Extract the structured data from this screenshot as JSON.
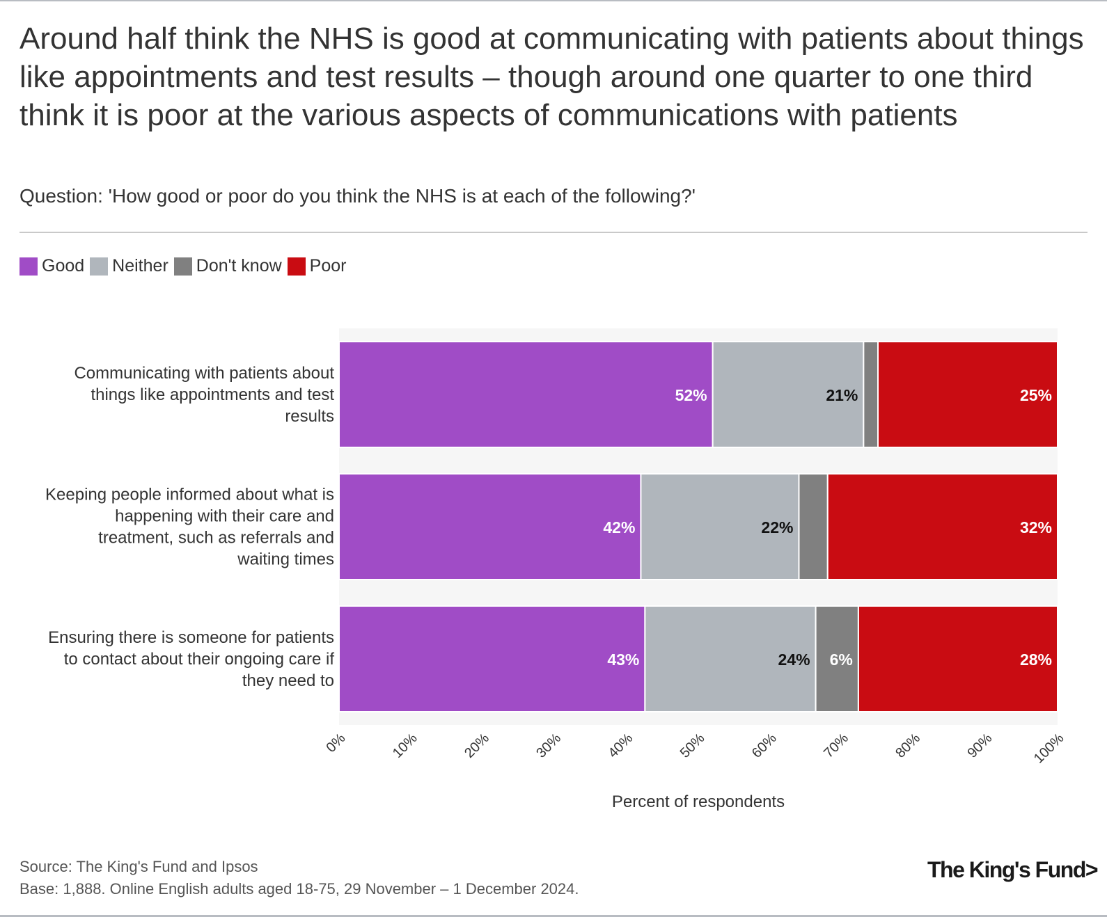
{
  "header": {
    "title": "Around half think the NHS is good at communicating with patients about things like appointments and test results – though around one quarter to one third think it is poor at the various aspects of communications with patients",
    "subtitle": "Question: 'How good or poor do you think the NHS is at each of the following?'"
  },
  "legend": [
    {
      "label": "Good",
      "color": "#a04cc6"
    },
    {
      "label": "Neither",
      "color": "#b0b6bc"
    },
    {
      "label": "Don't know",
      "color": "#808080"
    },
    {
      "label": "Poor",
      "color": "#c90c12"
    }
  ],
  "chart_data": {
    "type": "bar",
    "orientation": "horizontal",
    "stacked": true,
    "categories": [
      [
        "Communicating with patients about",
        "things like appointments and test",
        "results"
      ],
      [
        "Keeping people informed about what is",
        "happening with their care and",
        "treatment, such as referrals and",
        "waiting times"
      ],
      [
        "Ensuring there is someone for patients",
        "to contact about their ongoing care if",
        "they need to"
      ]
    ],
    "series": [
      {
        "name": "Good",
        "color": "#a04cc6",
        "values": [
          52,
          42,
          43
        ],
        "labels": [
          "52%",
          "42%",
          "43%"
        ],
        "label_color": "#ffffff"
      },
      {
        "name": "Neither",
        "color": "#b0b6bc",
        "values": [
          21,
          22,
          24
        ],
        "labels": [
          "21%",
          "22%",
          "24%"
        ],
        "label_color": "#111111"
      },
      {
        "name": "Don't know",
        "color": "#808080",
        "values": [
          2,
          4,
          6
        ],
        "labels": [
          "",
          "",
          "6%"
        ],
        "label_color": "#ffffff"
      },
      {
        "name": "Poor",
        "color": "#c90c12",
        "values": [
          25,
          32,
          28
        ],
        "labels": [
          "25%",
          "32%",
          "28%"
        ],
        "label_color": "#ffffff"
      }
    ],
    "xlim": [
      0,
      100
    ],
    "xticks": [
      "0%",
      "10%",
      "20%",
      "30%",
      "40%",
      "50%",
      "60%",
      "70%",
      "80%",
      "90%",
      "100%"
    ],
    "xlabel": "Percent of respondents",
    "ylabel": ""
  },
  "footer": {
    "source": "Source: The King's Fund and Ipsos",
    "base": "Base: 1,888. Online English adults aged 18-75, 29 November – 1 December 2024.",
    "logo": "The King's Fund>"
  }
}
